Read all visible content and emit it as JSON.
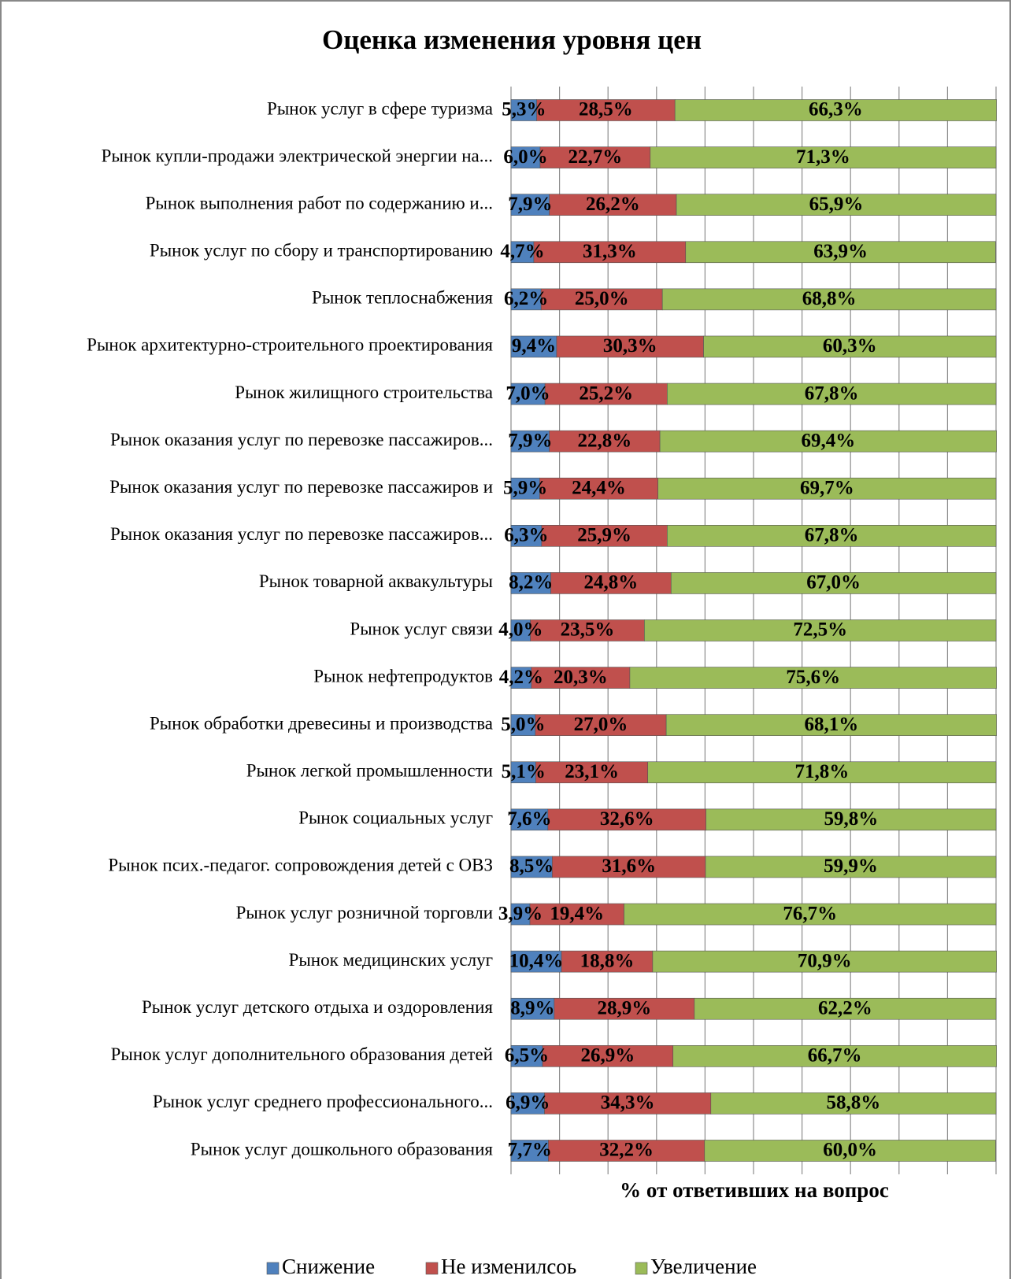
{
  "chart_data": {
    "type": "stacked_barh",
    "title": "Оценка изменения уровня цен",
    "x_label": "% от ответивших на вопрос",
    "categories": [
      "Рынок услуг в сфере туризма",
      "Рынок купли-продажи электрической энергии на...",
      "Рынок выполнения работ по содержанию и...",
      "Рынок услуг по сбору и транспортированию",
      "Рынок теплоснабжения",
      "Рынок архитектурно-строительного проектирования",
      "Рынок жилищного строительства",
      "Рынок оказания услуг по перевозке пассажиров...",
      "Рынок оказания услуг по перевозке пассажиров и",
      "Рынок оказания услуг по перевозке пассажиров...",
      "Рынок товарной аквакультуры",
      "Рынок услуг связи",
      "Рынок нефтепродуктов",
      "Рынок обработки древесины и производства",
      "Рынок легкой промышленности",
      "Рынок социальных услуг",
      "Рынок псих.-педагог. сопровождения детей с ОВЗ",
      "Рынок услуг розничной торговли",
      "Рынок медицинских услуг",
      "Рынок услуг детского отдыха и оздоровления",
      "Рынок услуг дополнительного образования детей",
      "Рынок услуг среднего профессионального...",
      "Рынок услуг дошкольного образования"
    ],
    "series": [
      {
        "name": "Снижение",
        "color": "#4f81bd",
        "values": [
          5.3,
          6.0,
          7.9,
          4.7,
          6.2,
          9.4,
          7.0,
          7.9,
          5.9,
          6.3,
          8.2,
          4.0,
          4.2,
          5.0,
          5.1,
          7.6,
          8.5,
          3.9,
          10.4,
          8.9,
          6.5,
          6.9,
          7.7
        ],
        "value_labels": [
          "5,3%",
          "6,0%",
          "7,9%",
          "4,7%",
          "6,2%",
          "9,4%",
          "7,0%",
          "7,9%",
          "5,9%",
          "6,3%",
          "8,2%",
          "4,0%",
          "4,2%",
          "5,0%",
          "5,1%",
          "7,6%",
          "8,5%",
          "3,9%",
          "10,4%",
          "8,9%",
          "6,5%",
          "6,9%",
          "7,7%"
        ]
      },
      {
        "name": "Не изменилсоь",
        "color": "#c0504d",
        "values": [
          28.5,
          22.7,
          26.2,
          31.3,
          25.0,
          30.3,
          25.2,
          22.8,
          24.4,
          25.9,
          24.8,
          23.5,
          20.3,
          27.0,
          23.1,
          32.6,
          31.6,
          19.4,
          18.8,
          28.9,
          26.9,
          34.3,
          32.2
        ],
        "value_labels": [
          "28,5%",
          "22,7%",
          "26,2%",
          "31,3%",
          "25,0%",
          "30,3%",
          "25,2%",
          "22,8%",
          "24,4%",
          "25,9%",
          "24,8%",
          "23,5%",
          "20,3%",
          "27,0%",
          "23,1%",
          "32,6%",
          "31,6%",
          "19,4%",
          "18,8%",
          "28,9%",
          "26,9%",
          "34,3%",
          "32,2%"
        ]
      },
      {
        "name": "Увеличение",
        "color": "#9bbb59",
        "values": [
          66.3,
          71.3,
          65.9,
          63.9,
          68.8,
          60.3,
          67.8,
          69.4,
          69.7,
          67.8,
          67.0,
          72.5,
          75.6,
          68.1,
          71.8,
          59.8,
          59.9,
          76.7,
          70.9,
          62.2,
          66.7,
          58.8,
          60.0
        ],
        "value_labels": [
          "66,3%",
          "71,3%",
          "65,9%",
          "63,9%",
          "68,8%",
          "60,3%",
          "67,8%",
          "69,4%",
          "69,7%",
          "67,8%",
          "67,0%",
          "72,5%",
          "75,6%",
          "68,1%",
          "71,8%",
          "59,8%",
          "59,9%",
          "76,7%",
          "70,9%",
          "62,2%",
          "66,7%",
          "58,8%",
          "60,0%"
        ]
      }
    ],
    "xlim": [
      0,
      100
    ],
    "xticks": [
      0,
      10,
      20,
      30,
      40,
      50,
      60,
      70,
      80,
      90,
      100
    ],
    "grid": true,
    "legend": "bottom"
  }
}
